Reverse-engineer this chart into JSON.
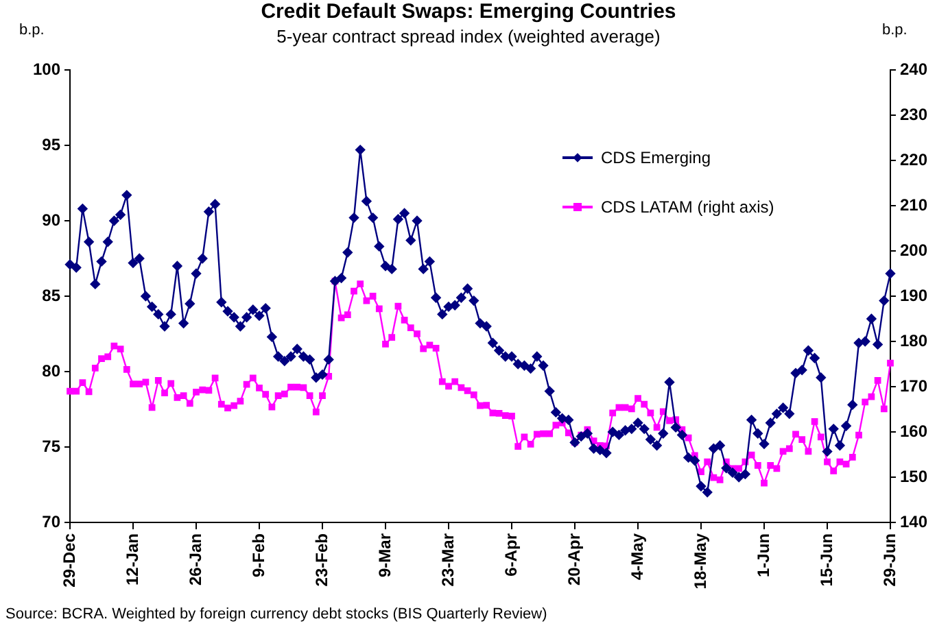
{
  "chart_data": {
    "type": "line",
    "title": "Credit Default Swaps: Emerging Countries",
    "subtitle": "5-year contract spread index (weighted average)",
    "ylabel": "b.p.",
    "y2label": "b.p.",
    "categories": [
      "29-Dec",
      null,
      null,
      null,
      null,
      null,
      null,
      null,
      null,
      null,
      "12-Jan",
      null,
      null,
      null,
      null,
      null,
      null,
      null,
      null,
      null,
      "26-Jan",
      null,
      null,
      null,
      null,
      null,
      null,
      null,
      null,
      null,
      "9-Feb",
      null,
      null,
      null,
      null,
      null,
      null,
      null,
      null,
      null,
      "23-Feb",
      null,
      null,
      null,
      null,
      null,
      null,
      null,
      null,
      null,
      "9-Mar",
      null,
      null,
      null,
      null,
      null,
      null,
      null,
      null,
      null,
      "23-Mar",
      null,
      null,
      null,
      null,
      null,
      null,
      null,
      null,
      null,
      "6-Apr",
      null,
      null,
      null,
      null,
      null,
      null,
      null,
      null,
      null,
      "20-Apr",
      null,
      null,
      null,
      null,
      null,
      null,
      null,
      null,
      null,
      "4-May",
      null,
      null,
      null,
      null,
      null,
      null,
      null,
      null,
      null,
      "18-May",
      null,
      null,
      null,
      null,
      null,
      null,
      null,
      null,
      null,
      "1-Jun",
      null,
      null,
      null,
      null,
      null,
      null,
      null,
      null,
      null,
      "15-Jun",
      null,
      null,
      null,
      null,
      null,
      null,
      null,
      null,
      null,
      "29-Jun"
    ],
    "series": [
      {
        "name": "CDS Emerging",
        "color": "#000080",
        "marker": "diamond",
        "values": [
          87.1,
          86.9,
          90.8,
          88.6,
          85.8,
          87.3,
          88.6,
          90.0,
          90.4,
          91.7,
          87.2,
          87.5,
          85.0,
          84.3,
          83.8,
          83.0,
          83.8,
          87.0,
          83.2,
          84.5,
          86.5,
          87.5,
          90.6,
          91.1,
          84.6,
          84.0,
          83.6,
          83.0,
          83.6,
          84.1,
          83.7,
          84.2,
          82.3,
          81.0,
          80.7,
          81.0,
          81.5,
          81.0,
          80.8,
          79.6,
          79.8,
          80.8,
          86.0,
          86.2,
          87.9,
          90.2,
          94.7,
          91.3,
          90.2,
          88.3,
          87.0,
          86.8,
          90.1,
          90.5,
          88.7,
          90.0,
          86.8,
          87.3,
          84.9,
          83.8,
          84.3,
          84.4,
          84.9,
          85.5,
          84.7,
          83.2,
          83.0,
          81.9,
          81.4,
          81.0,
          81.0,
          80.5,
          80.4,
          80.2,
          81.0,
          80.4,
          78.7,
          77.3,
          76.9,
          76.8,
          75.3,
          75.7,
          75.9,
          74.9,
          74.8,
          74.6,
          76.0,
          75.8,
          76.1,
          76.2,
          76.6,
          76.2,
          75.5,
          75.1,
          75.9,
          79.3,
          76.3,
          75.8,
          74.3,
          74.1,
          72.4,
          72.0,
          74.9,
          75.1,
          73.6,
          73.3,
          73.0,
          73.2,
          76.8,
          75.9,
          75.2,
          76.6,
          77.2,
          77.6,
          77.2,
          79.9,
          80.1,
          81.4,
          80.9,
          79.6,
          74.7,
          76.2,
          75.1,
          76.4,
          77.8,
          81.9,
          82.0,
          83.5,
          81.8,
          84.7,
          86.5
        ]
      },
      {
        "name": "CDS LATAM (right axis)",
        "color": "#ff00ff",
        "marker": "square",
        "axis": "y2",
        "values": [
          169.0,
          169.0,
          170.9,
          168.9,
          174.1,
          176.2,
          176.6,
          179.0,
          178.3,
          173.8,
          170.6,
          170.6,
          171.0,
          165.4,
          171.4,
          168.6,
          170.7,
          167.6,
          168.0,
          166.3,
          168.8,
          169.3,
          169.2,
          171.9,
          166.1,
          165.3,
          165.8,
          166.8,
          170.5,
          171.9,
          169.7,
          168.3,
          165.5,
          168.0,
          168.4,
          169.9,
          169.9,
          169.8,
          168.0,
          164.4,
          168.0,
          172.3,
          193.3,
          185.2,
          185.9,
          191.1,
          192.7,
          189.0,
          190.0,
          187.2,
          179.4,
          180.9,
          187.8,
          184.7,
          183.0,
          181.7,
          178.4,
          179.2,
          178.5,
          171.1,
          170.1,
          171.1,
          169.8,
          169.1,
          168.2,
          165.8,
          165.9,
          164.2,
          164.1,
          163.6,
          163.5,
          156.8,
          158.9,
          157.3,
          159.5,
          159.6,
          159.6,
          161.5,
          162.0,
          159.8,
          157.7,
          159.3,
          160.5,
          158.0,
          157.0,
          156.9,
          164.2,
          165.4,
          165.4,
          165.1,
          167.4,
          166.1,
          164.2,
          161.0,
          164.5,
          162.5,
          162.7,
          160.5,
          158.7,
          154.8,
          151.2,
          153.4,
          149.9,
          149.4,
          153.4,
          151.9,
          151.9,
          153.4,
          154.9,
          152.6,
          148.7,
          152.6,
          151.9,
          155.7,
          156.3,
          159.5,
          158.3,
          155.7,
          162.3,
          158.9,
          153.4,
          151.4,
          153.4,
          152.9,
          154.4,
          159.3,
          166.6,
          167.8,
          171.4,
          165.1,
          175.2
        ]
      }
    ],
    "ylim": [
      70,
      100
    ],
    "yticks": [
      70,
      75,
      80,
      85,
      90,
      95,
      100
    ],
    "y2lim": [
      140,
      240
    ],
    "y2ticks": [
      140,
      150,
      160,
      170,
      180,
      190,
      200,
      210,
      220,
      230,
      240
    ],
    "legend": "top right",
    "annotations": [
      "Source: BCRA. Weighted by foreign currency debt stocks (BIS Quarterly Review)"
    ]
  }
}
